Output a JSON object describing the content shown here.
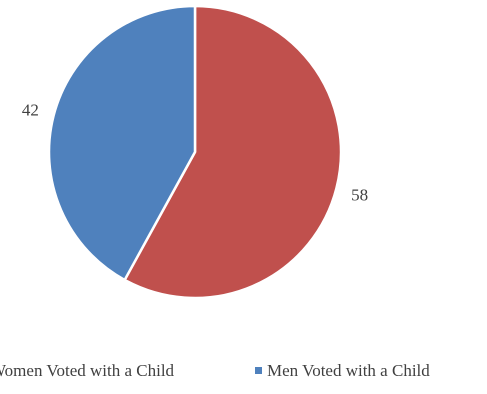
{
  "chart_data": {
    "type": "pie",
    "title": "",
    "slices": [
      {
        "label": "Women Voted with a Child",
        "value": 58,
        "color": "#C0504D",
        "data_label": "58"
      },
      {
        "label": "Men Voted with a Child",
        "value": 42,
        "color": "#4F81BD",
        "data_label": "42"
      }
    ],
    "legend": {
      "placement": "bottom",
      "entries": [
        "Women Voted with a Child",
        "Men Voted with a Child"
      ]
    }
  }
}
